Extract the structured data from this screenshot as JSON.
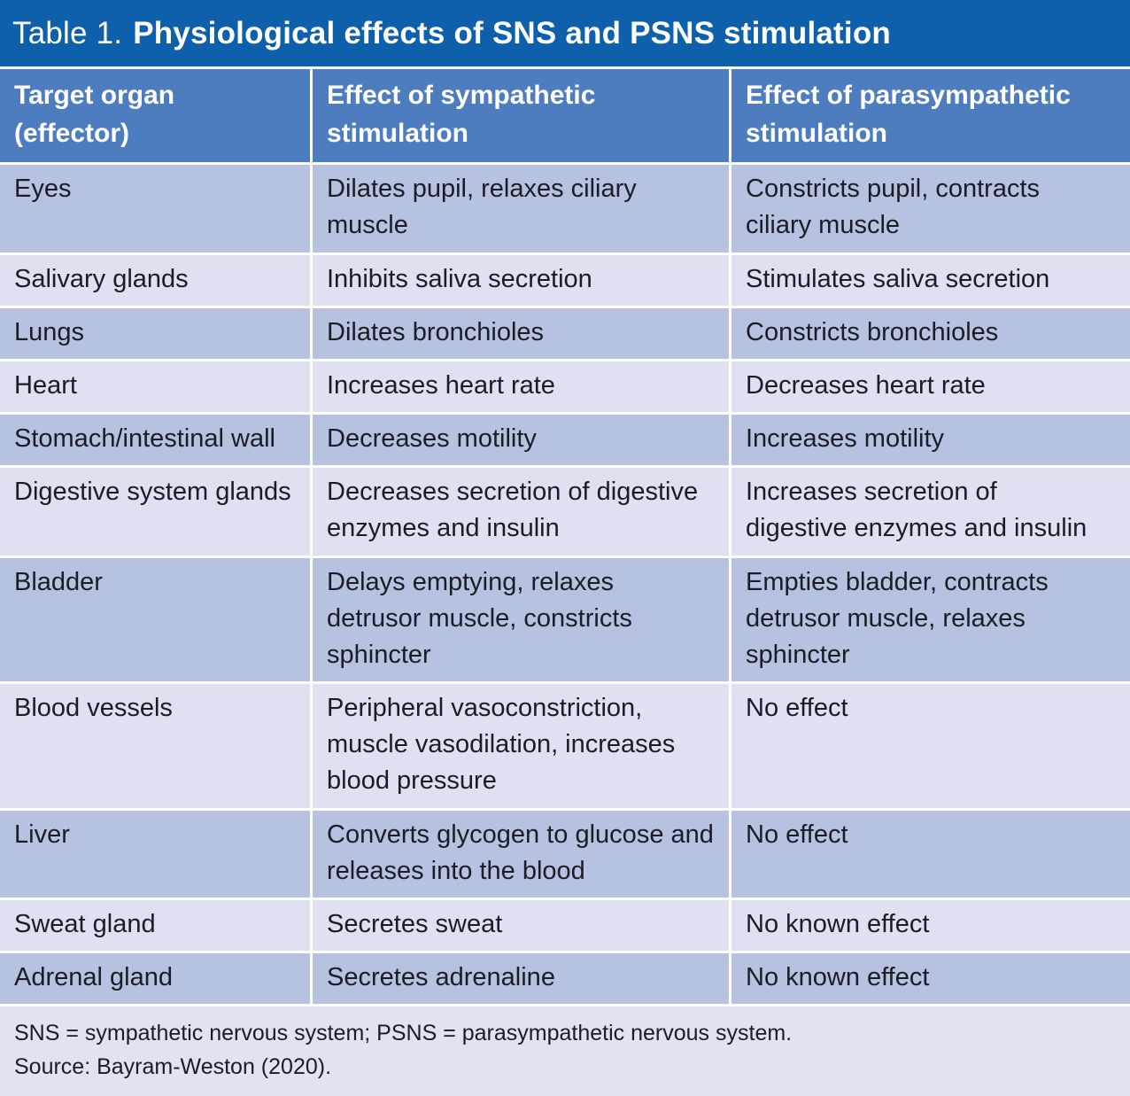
{
  "table": {
    "title_prefix": "Table 1.",
    "title_bold": "Physiological effects of SNS and PSNS stimulation",
    "columns": [
      "Target organ (effector)",
      "Effect of sympathetic stimulation",
      "Effect of parasympathetic stimulation"
    ],
    "rows": [
      {
        "organ": "Eyes",
        "sns": "Dilates pupil, relaxes ciliary muscle",
        "psns": "Constricts pupil, contracts ciliary muscle"
      },
      {
        "organ": "Salivary glands",
        "sns": "Inhibits saliva secretion",
        "psns": "Stimulates saliva secretion"
      },
      {
        "organ": "Lungs",
        "sns": "Dilates bronchioles",
        "psns": "Constricts bronchioles"
      },
      {
        "organ": "Heart",
        "sns": "Increases heart rate",
        "psns": "Decreases heart rate"
      },
      {
        "organ": "Stomach/intestinal wall",
        "sns": "Decreases motility",
        "psns": "Increases motility"
      },
      {
        "organ": "Digestive system glands",
        "sns": "Decreases secretion of digestive enzymes and insulin",
        "psns": "Increases secretion of digestive enzymes and insulin"
      },
      {
        "organ": "Bladder",
        "sns": "Delays emptying, relaxes detrusor muscle, constricts sphincter",
        "psns": "Empties bladder, contracts detrusor muscle, relaxes sphincter"
      },
      {
        "organ": "Blood vessels",
        "sns": "Peripheral vasoconstriction, muscle vasodilation, increases blood pressure",
        "psns": "No effect"
      },
      {
        "organ": "Liver",
        "sns": "Converts glycogen to glucose and releases into the blood",
        "psns": "No effect"
      },
      {
        "organ": "Sweat gland",
        "sns": "Secretes sweat",
        "psns": "No known effect"
      },
      {
        "organ": "Adrenal gland",
        "sns": "Secretes adrenaline",
        "psns": "No known effect"
      }
    ],
    "footnote": "SNS = sympathetic nervous system; PSNS = parasympathetic nervous system.",
    "source": "Source: Bayram-Weston (2020)."
  },
  "colors": {
    "title_bg": "#0e60ab",
    "header_bg": "#4d7cbf",
    "row_dark": "#b7c2e0",
    "row_light": "#dee1f0",
    "footer_bg": "#e1e3f1",
    "text_dark": "#1b1c26",
    "text_light": "#ffffff",
    "grid_line": "#ffffff"
  }
}
